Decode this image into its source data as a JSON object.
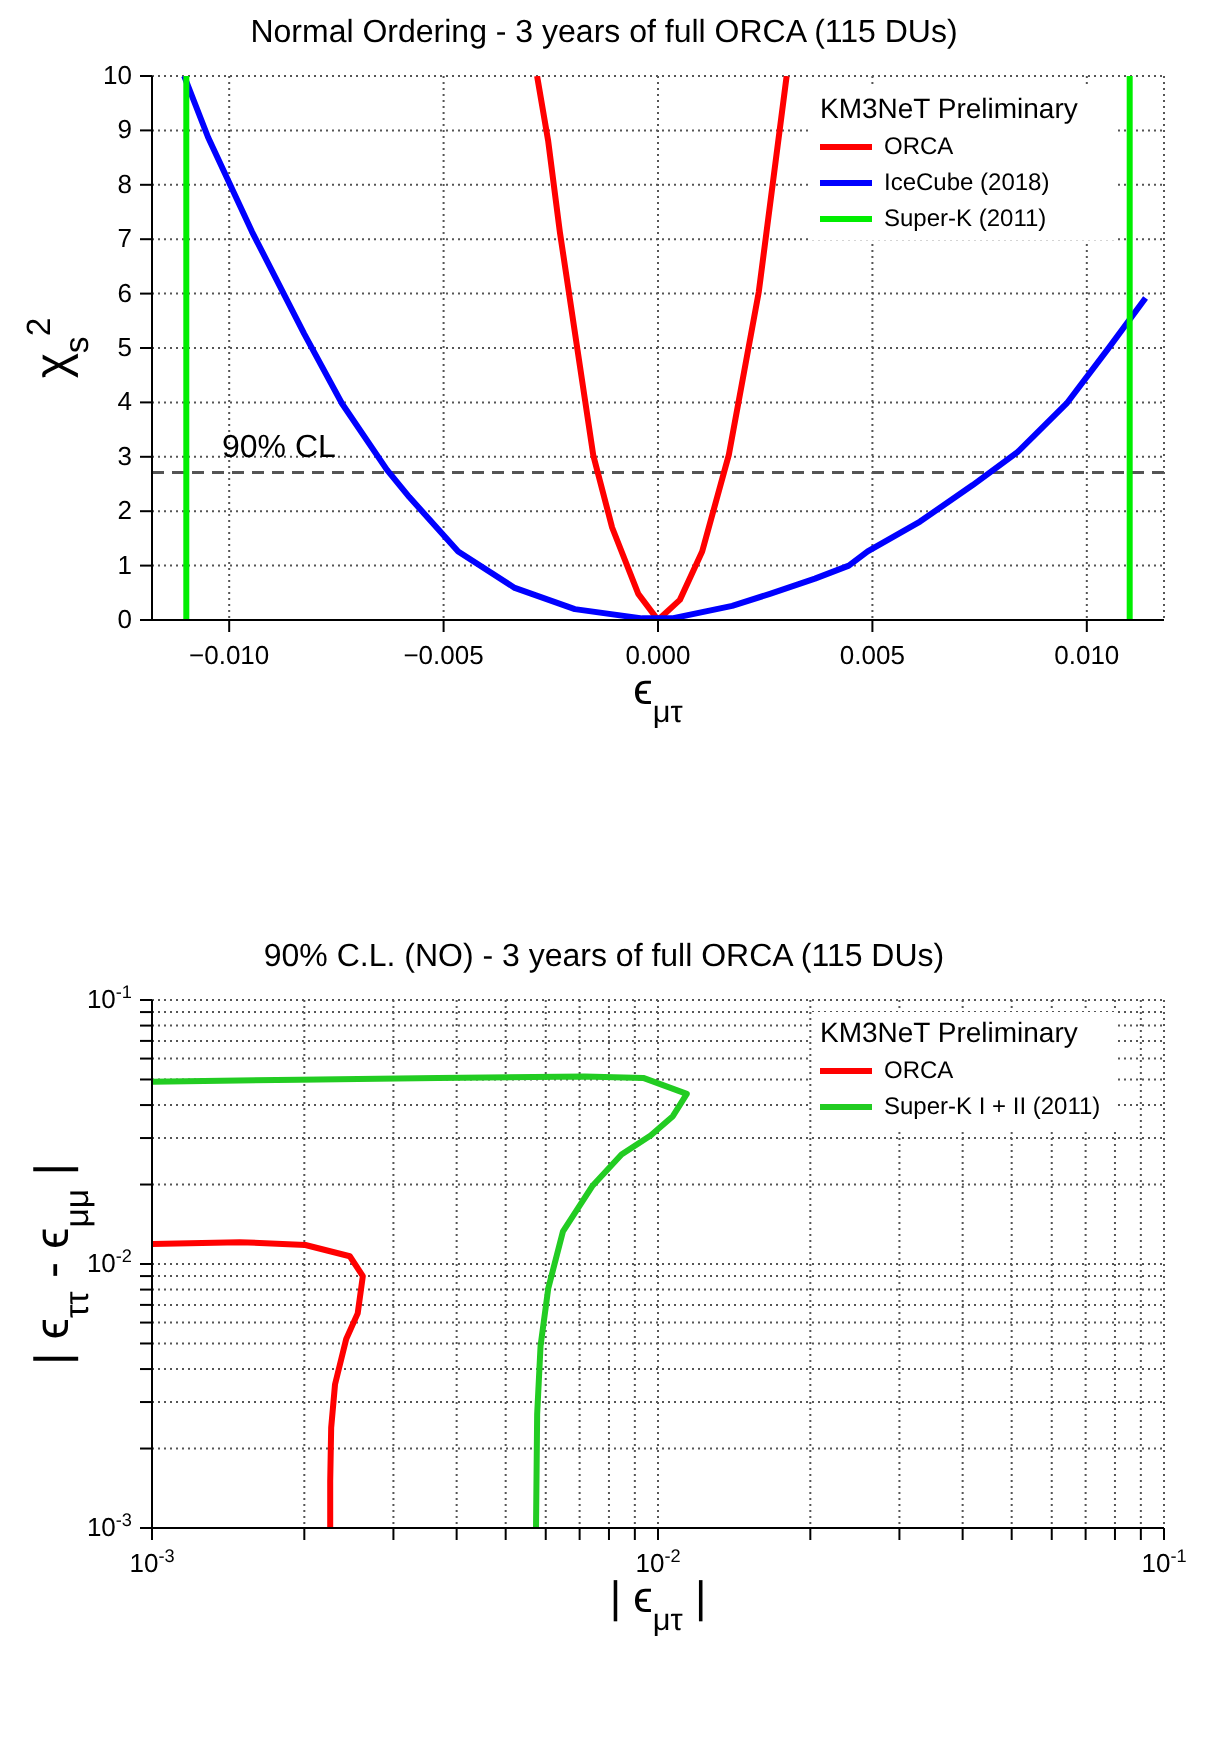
{
  "chart_data": [
    {
      "type": "line",
      "title": "Normal Ordering - 3 years of full ORCA (115 DUs)",
      "xlabel": "ϵ$_{μτ}$",
      "ylabel": "χ$_{s}$$^{2}$",
      "legend_title": "KM3NeT Preliminary",
      "legend": "top right",
      "grid": true,
      "marker": "none",
      "xlim": [
        -0.0118,
        0.0118
      ],
      "xticks": [
        {
          "value": -0.01,
          "label": "−0.010"
        },
        {
          "value": -0.005,
          "label": "−0.005"
        },
        {
          "value": 0,
          "label": "0.000"
        },
        {
          "value": 0.005,
          "label": "0.005"
        },
        {
          "value": 0.01,
          "label": "0.010"
        }
      ],
      "ylim": [
        0,
        10
      ],
      "yticks": [
        0,
        1,
        2,
        3,
        4,
        5,
        6,
        7,
        8,
        9,
        10
      ],
      "ref_lines": [
        {
          "axis": "y",
          "value": 2.71,
          "label": "90% CL",
          "color": "#555555",
          "line_style": "dashed"
        }
      ],
      "series": [
        {
          "name": "ORCA",
          "color": "#ff0000",
          "x": [
            -0.00282,
            -0.00256,
            -0.00229,
            -0.00151,
            -0.00107,
            -0.00046,
            0,
            0.00051,
            0.00103,
            0.00165,
            0.00235,
            0.003
          ],
          "values": [
            10,
            8.8,
            7.14,
            3.03,
            1.7,
            0.48,
            0,
            0.37,
            1.26,
            3.03,
            6.03,
            10
          ]
        },
        {
          "name": "IceCube (2018)",
          "color": "#0000ff",
          "x": [
            -0.01105,
            -0.01049,
            -0.00947,
            -0.00825,
            -0.00737,
            -0.00632,
            -0.0058,
            -0.00466,
            -0.00334,
            -0.00194,
            -0.00037,
            0.00033,
            0.00173,
            0.00261,
            0.00366,
            0.00445,
            0.00489,
            0.00611,
            0.00734,
            0.00839,
            0.00953,
            0.01049,
            0.01137
          ],
          "values": [
            10,
            8.87,
            7.14,
            5.26,
            3.98,
            2.76,
            2.26,
            1.26,
            0.59,
            0.2,
            0.03,
            0.03,
            0.26,
            0.48,
            0.76,
            1.0,
            1.26,
            1.81,
            2.48,
            3.09,
            3.98,
            4.98,
            5.92
          ]
        },
        {
          "name": "Super-K (2011)",
          "color": "#00ee00",
          "x": [
            -0.011,
            -0.011
          ],
          "values": [
            0,
            10
          ]
        },
        {
          "color": "#00ee00",
          "x": [
            0.011,
            0.011
          ],
          "values": [
            0,
            10
          ]
        }
      ]
    },
    {
      "type": "line",
      "title": "90% C.L. (NO) - 3 years of full ORCA (115 DUs)",
      "xlabel": "| ϵ$_{μτ}$ |",
      "ylabel": "| ϵ$_{ττ}$ - ϵ$_{μμ}$ |",
      "legend_title": "KM3NeT Preliminary",
      "legend": "top right",
      "grid": true,
      "marker": "none",
      "log": "xy",
      "xlim": [
        0.001,
        0.1
      ],
      "xticks": [
        {
          "value": 0.001,
          "label": "10$^{-3}$"
        },
        {
          "value": 0.002,
          "label": null
        },
        {
          "value": 0.003,
          "label": null
        },
        {
          "value": 0.004,
          "label": null
        },
        {
          "value": 0.005,
          "label": null
        },
        {
          "value": 0.006,
          "label": null
        },
        {
          "value": 0.007,
          "label": null
        },
        {
          "value": 0.008,
          "label": null
        },
        {
          "value": 0.009,
          "label": null
        },
        {
          "value": 0.01,
          "label": "10$^{-2}$"
        },
        {
          "value": 0.02,
          "label": null
        },
        {
          "value": 0.03,
          "label": null
        },
        {
          "value": 0.04,
          "label": null
        },
        {
          "value": 0.05,
          "label": null
        },
        {
          "value": 0.06,
          "label": null
        },
        {
          "value": 0.07,
          "label": null
        },
        {
          "value": 0.08,
          "label": null
        },
        {
          "value": 0.09,
          "label": null
        },
        {
          "value": 0.1,
          "label": "10$^{-1}$"
        }
      ],
      "ylim": [
        0.001,
        0.1
      ],
      "yticks": [
        {
          "value": 0.001,
          "label": "10$^{-3}$"
        },
        {
          "value": 0.002,
          "label": null
        },
        {
          "value": 0.003,
          "label": null
        },
        {
          "value": 0.004,
          "label": null
        },
        {
          "value": 0.005,
          "label": null
        },
        {
          "value": 0.006,
          "label": null
        },
        {
          "value": 0.007,
          "label": null
        },
        {
          "value": 0.008,
          "label": null
        },
        {
          "value": 0.009,
          "label": null
        },
        {
          "value": 0.01,
          "label": "10$^{-2}$"
        },
        {
          "value": 0.02,
          "label": null
        },
        {
          "value": 0.03,
          "label": null
        },
        {
          "value": 0.04,
          "label": null
        },
        {
          "value": 0.05,
          "label": null
        },
        {
          "value": 0.06,
          "label": null
        },
        {
          "value": 0.07,
          "label": null
        },
        {
          "value": 0.08,
          "label": null
        },
        {
          "value": 0.09,
          "label": null
        },
        {
          "value": 0.1,
          "label": "10$^{-1}$"
        }
      ],
      "series": [
        {
          "name": "ORCA",
          "color": "#ff0000",
          "x": [
            0.001,
            0.00149,
            0.00201,
            0.00246,
            0.00261,
            0.00255,
            0.00242,
            0.0023,
            0.00226,
            0.00225,
            0.00225
          ],
          "values": [
            0.0119,
            0.0121,
            0.0118,
            0.0107,
            0.009,
            0.0065,
            0.0052,
            0.0035,
            0.0024,
            0.0015,
            0.001
          ]
        },
        {
          "name": "Super-K I + II (2011)",
          "color": "#22cc22",
          "x": [
            0.001,
            0.00195,
            0.00367,
            0.00716,
            0.00935,
            0.0114,
            0.0107,
            0.00967,
            0.00847,
            0.00741,
            0.00649,
            0.00607,
            0.00586,
            0.00577,
            0.00574
          ],
          "values": [
            0.049,
            0.0499,
            0.0507,
            0.0513,
            0.0507,
            0.0441,
            0.0363,
            0.0307,
            0.026,
            0.0197,
            0.0133,
            0.0081,
            0.0049,
            0.0027,
            0.001
          ]
        }
      ]
    }
  ]
}
